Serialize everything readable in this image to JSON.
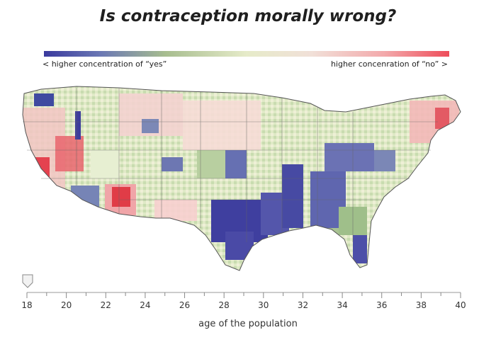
{
  "title": "Is contraception morally wrong?",
  "legend": {
    "left_label": "< higher concentration of “yes”",
    "right_label": "higher concenration of “no” >",
    "colors": [
      "#3a3a9e",
      "#6b78b4",
      "#a7bd8f",
      "#e6ebc9",
      "#f1e0d8",
      "#f3a9ab",
      "#ee4d5a"
    ]
  },
  "slider": {
    "ticks": [
      "18",
      "20",
      "22",
      "24",
      "26",
      "28",
      "30",
      "32",
      "34",
      "36",
      "38",
      "40"
    ],
    "selected_value": 18,
    "axis_label": "age of the population"
  },
  "map": {
    "name": "united-states-county-choropleth",
    "regions": [
      {
        "id": "southeast-texas-louisiana",
        "tone": "yes"
      },
      {
        "id": "mississippi-valley",
        "tone": "yes"
      },
      {
        "id": "appalachia-ohio",
        "tone": "yes"
      },
      {
        "id": "central-florida",
        "tone": "yes"
      },
      {
        "id": "california-coast",
        "tone": "no"
      },
      {
        "id": "central-arizona",
        "tone": "no"
      },
      {
        "id": "northeast",
        "tone": "no"
      },
      {
        "id": "northwest-plains",
        "tone": "mixed"
      }
    ]
  }
}
